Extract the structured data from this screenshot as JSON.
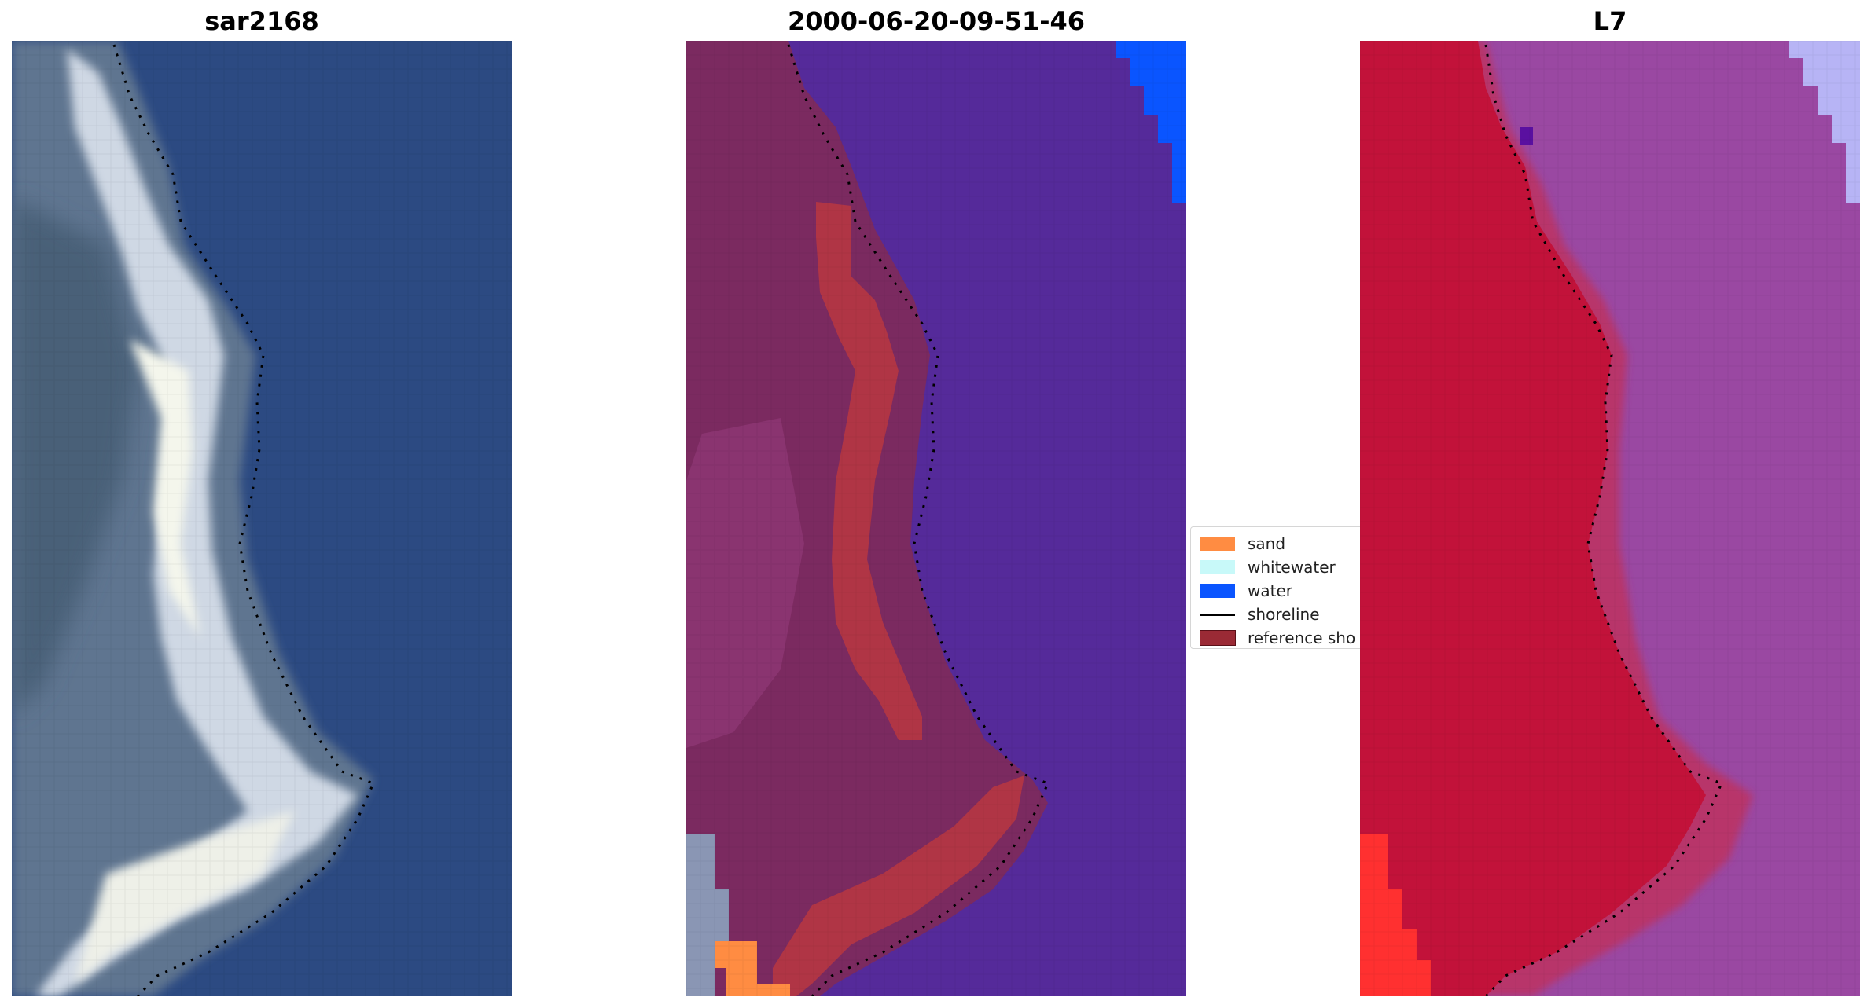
{
  "panels": [
    {
      "title": "sar2168"
    },
    {
      "title": "2000-06-20-09-51-46"
    },
    {
      "title": "L7"
    }
  ],
  "legend": {
    "items": [
      {
        "label": "sand",
        "color": "#ff8c42",
        "kind": "patch"
      },
      {
        "label": "whitewater",
        "color": "#c8f9f9",
        "kind": "patch"
      },
      {
        "label": "water",
        "color": "#0a55ff",
        "kind": "patch"
      },
      {
        "label": "shoreline",
        "color": "#000000",
        "kind": "line"
      },
      {
        "label": "reference sho",
        "color": "#9a2a35",
        "kind": "patch"
      }
    ]
  },
  "colors": {
    "rgb_water": "#2c4a82",
    "rgb_land": "#5a7090",
    "rgb_beach": "#dde4ee",
    "class_water": "#552a9a",
    "class_land": "#7b2a60",
    "class_reference": "#b03545",
    "class_sand": "#ff8c42",
    "class_water_bright": "#0a55ff",
    "l7_land": "#c2123a",
    "l7_water": "#9a48a2",
    "l7_bright": "#b7b4f5",
    "l7_red": "#ff3030"
  }
}
